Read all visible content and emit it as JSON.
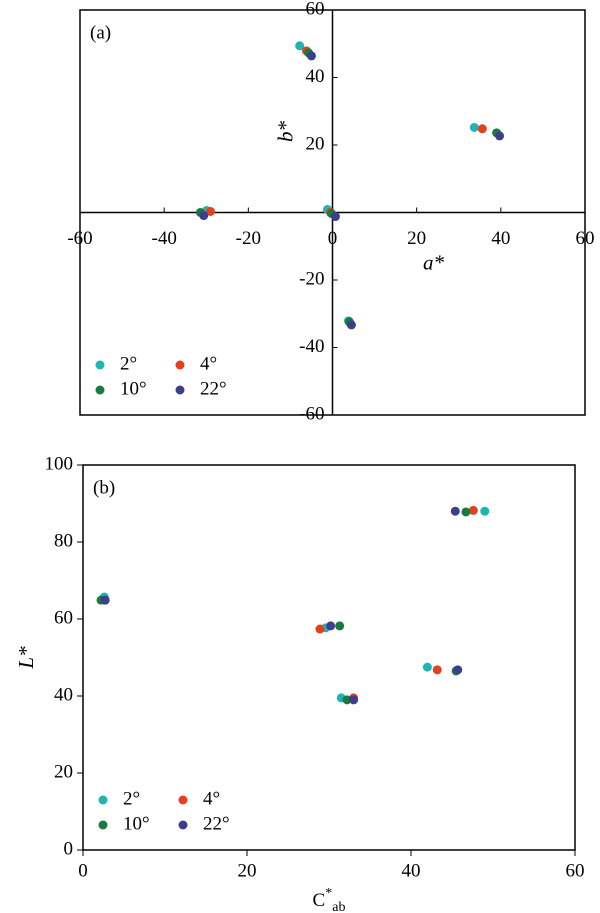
{
  "chart_data": [
    {
      "type": "scatter",
      "title": "(a)",
      "xlabel": "a*",
      "ylabel": "b*",
      "axes_at_origin": true,
      "xlim": [
        -60,
        60
      ],
      "ylim": [
        -60,
        60
      ],
      "xticks": [
        -60,
        -40,
        -20,
        0,
        20,
        40,
        60
      ],
      "yticks": [
        -60,
        -40,
        -20,
        20,
        40,
        60
      ],
      "legend_loc": "lower left",
      "series": [
        {
          "name": "2°",
          "color": "#1fb5b8",
          "x": [
            -7.8,
            33.7,
            -29.9,
            -1.2,
            3.8
          ],
          "y": [
            49.4,
            25.2,
            0.6,
            0.9,
            -32.1
          ]
        },
        {
          "name": "4°",
          "color": "#e5401d",
          "x": [
            -6.2,
            35.6,
            -29.0,
            -0.5,
            4.3
          ],
          "y": [
            47.9,
            24.8,
            0.3,
            0.0,
            -33.0
          ]
        },
        {
          "name": "10°",
          "color": "#1b7a3e",
          "x": [
            -5.7,
            39.0,
            -31.4,
            -0.2,
            4.0
          ],
          "y": [
            47.3,
            23.6,
            0.0,
            -0.3,
            -32.4
          ]
        },
        {
          "name": "22°",
          "color": "#3b3f8c",
          "x": [
            -5.0,
            39.7,
            -30.6,
            0.7,
            4.5
          ],
          "y": [
            46.4,
            22.7,
            -0.9,
            -1.2,
            -33.3
          ]
        }
      ]
    },
    {
      "type": "scatter",
      "title": "(b)",
      "xlabel": "C",
      "xlabel_sup": "*",
      "xlabel_sub": "ab",
      "ylabel": "L*",
      "axes_at_origin": false,
      "xlim": [
        0,
        60
      ],
      "ylim": [
        0,
        100
      ],
      "xticks": [
        0,
        20,
        40,
        60
      ],
      "yticks": [
        0,
        20,
        40,
        60,
        80,
        100
      ],
      "legend_loc": "lower left",
      "series": [
        {
          "name": "2°",
          "color": "#1fb5b8",
          "x": [
            49.0,
            2.6,
            29.6,
            31.5,
            42.0
          ],
          "y": [
            88.0,
            65.7,
            57.7,
            39.5,
            47.5
          ]
        },
        {
          "name": "4°",
          "color": "#e5401d",
          "x": [
            47.6,
            2.7,
            28.9,
            33.0,
            43.2
          ],
          "y": [
            88.2,
            64.9,
            57.4,
            39.5,
            46.8
          ]
        },
        {
          "name": "10°",
          "color": "#1b7a3e",
          "x": [
            46.7,
            2.2,
            31.3,
            32.2,
            45.5
          ],
          "y": [
            87.8,
            64.9,
            58.2,
            39.0,
            46.5
          ]
        },
        {
          "name": "22°",
          "color": "#3b3f8c",
          "x": [
            45.4,
            2.7,
            30.2,
            33.0,
            45.7
          ],
          "y": [
            88.0,
            64.9,
            58.2,
            39.0,
            46.8
          ]
        }
      ]
    }
  ]
}
